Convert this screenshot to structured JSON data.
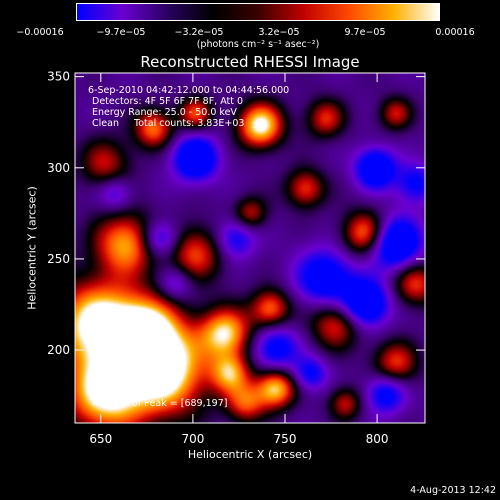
{
  "colorbar": {
    "tick_labels": [
      "−0.00016",
      "−9.7e−05",
      "−3.2e−05",
      "3.2e−05",
      "9.7e−05",
      "0.00016"
    ],
    "units": "(photons cm⁻² s⁻¹ asec⁻²)",
    "colors": [
      "#0000ff",
      "#6a00d0",
      "#2a0060",
      "#000000",
      "#3a0000",
      "#c00000",
      "#ff4800",
      "#ffb000",
      "#ffffff"
    ]
  },
  "chart_data": {
    "type": "heatmap",
    "title": "Reconstructed RHESSI Image",
    "xlabel": "Heliocentric X (arcsec)",
    "ylabel": "Heliocentric Y (arcsec)",
    "xlim": [
      636,
      826
    ],
    "ylim": [
      160,
      352
    ],
    "xticks": [
      650,
      700,
      750,
      800
    ],
    "yticks": [
      200,
      250,
      300,
      350
    ],
    "zlim": [
      -0.00016,
      0.00016
    ],
    "peak": [
      689,
      197
    ]
  },
  "annotations": {
    "time_range": "6-Sep-2010 04:42:12.000 to 04:44:56.000",
    "detectors": "Detectors: 4F 5F 6F 7F 8F, Att 0",
    "energy": "Energy Range: 25.0 - 50.0 keV",
    "clean": "Clean     Total counts: 3.83E+03",
    "peak": "Position of Peak = [689,197]"
  },
  "footer": "4-Aug-2013 12:42"
}
